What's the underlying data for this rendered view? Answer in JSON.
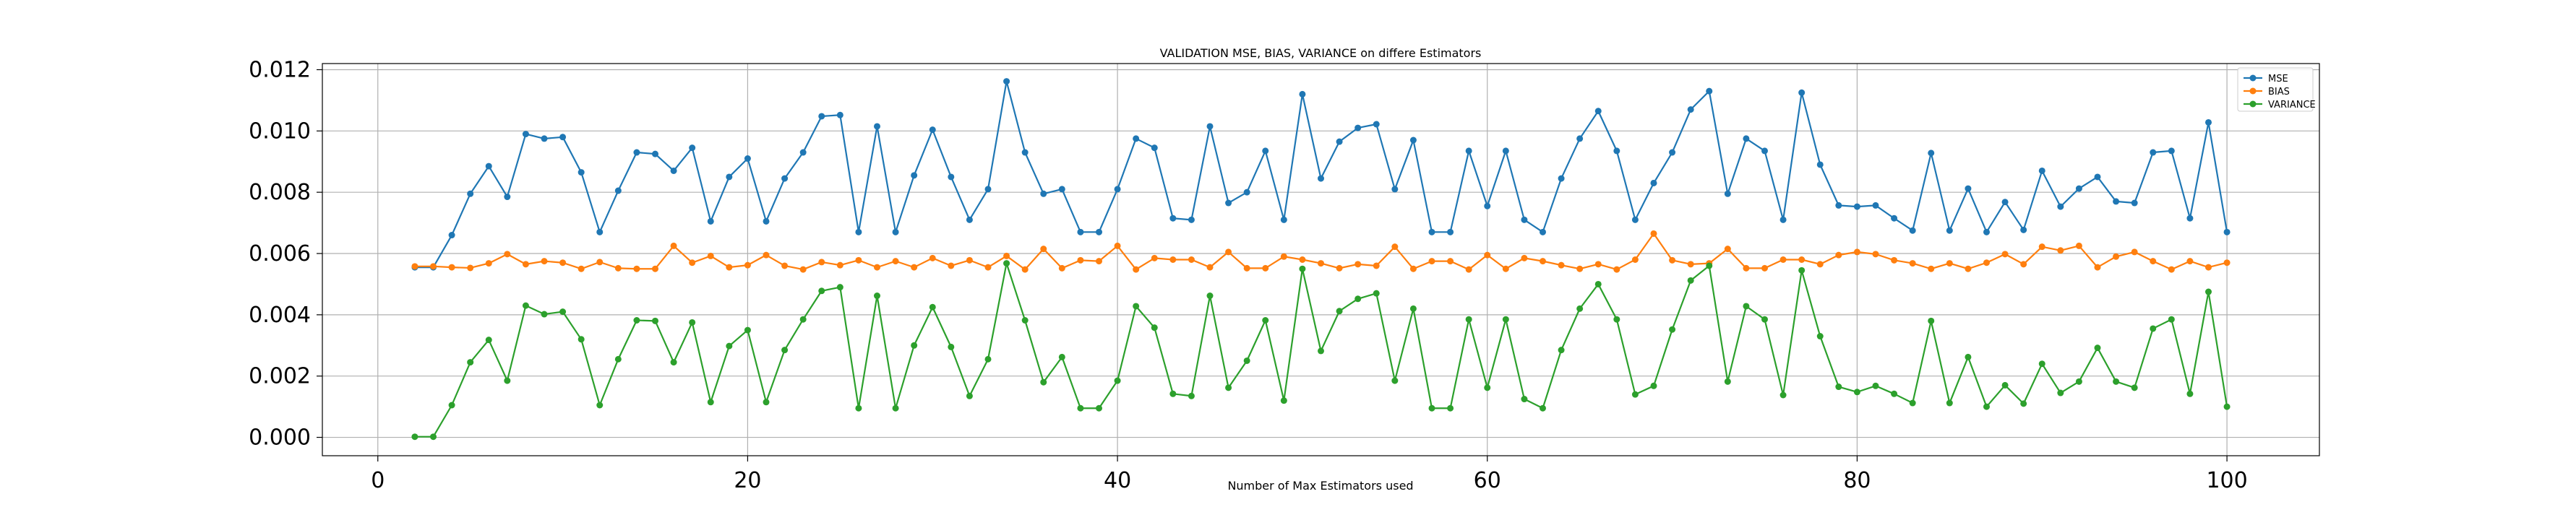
{
  "chart_data": {
    "type": "line",
    "title": "VALIDATION MSE, BIAS, VARIANCE on differe Estimators",
    "xlabel": "Number of Max Estimators used",
    "ylabel": "",
    "xlim": [
      -3,
      105
    ],
    "ylim": [
      -0.0006,
      0.0122
    ],
    "xticks": [
      0,
      20,
      40,
      60,
      80,
      100
    ],
    "yticks": [
      0.0,
      0.002,
      0.004,
      0.006,
      0.008,
      0.01,
      0.012
    ],
    "ytick_labels": [
      "0.000",
      "0.002",
      "0.004",
      "0.006",
      "0.008",
      "0.010",
      "0.012"
    ],
    "grid": true,
    "legend_position": "top-right",
    "x": [
      2,
      3,
      4,
      5,
      6,
      7,
      8,
      9,
      10,
      11,
      12,
      13,
      14,
      15,
      16,
      17,
      18,
      19,
      20,
      21,
      22,
      23,
      24,
      25,
      26,
      27,
      28,
      29,
      30,
      31,
      32,
      33,
      34,
      35,
      36,
      37,
      38,
      39,
      40,
      41,
      42,
      43,
      44,
      45,
      46,
      47,
      48,
      49,
      50,
      51,
      52,
      53,
      54,
      55,
      56,
      57,
      58,
      59,
      60,
      61,
      62,
      63,
      64,
      65,
      66,
      67,
      68,
      69,
      70,
      71,
      72,
      73,
      74,
      75,
      76,
      77,
      78,
      79,
      80,
      81,
      82,
      83,
      84,
      85,
      86,
      87,
      88,
      89,
      90,
      91,
      92,
      93,
      94,
      95,
      96,
      97,
      98,
      99,
      100
    ],
    "series": [
      {
        "name": "MSE",
        "color": "#1f77b4",
        "values": [
          0.00555,
          0.00555,
          0.0066,
          0.00795,
          0.00885,
          0.00785,
          0.0099,
          0.00975,
          0.0098,
          0.00865,
          0.0067,
          0.00805,
          0.0093,
          0.00925,
          0.0087,
          0.00945,
          0.00705,
          0.0085,
          0.0091,
          0.00705,
          0.00845,
          0.0093,
          0.01048,
          0.01052,
          0.0067,
          0.01015,
          0.0067,
          0.00855,
          0.01004,
          0.0085,
          0.0071,
          0.0081,
          0.01162,
          0.0093,
          0.00795,
          0.0081,
          0.0067,
          0.0067,
          0.0081,
          0.00975,
          0.00945,
          0.00715,
          0.0071,
          0.01015,
          0.00765,
          0.008,
          0.00935,
          0.0071,
          0.0112,
          0.00845,
          0.00965,
          0.0101,
          0.01022,
          0.0081,
          0.0097,
          0.0067,
          0.0067,
          0.00935,
          0.00755,
          0.00935,
          0.0071,
          0.0067,
          0.00845,
          0.00975,
          0.01065,
          0.00935,
          0.0071,
          0.0083,
          0.0093,
          0.0107,
          0.0113,
          0.00795,
          0.00975,
          0.00935,
          0.0071,
          0.01125,
          0.0089,
          0.00757,
          0.00753,
          0.00757,
          0.00715,
          0.00675,
          0.00928,
          0.00675,
          0.00812,
          0.0067,
          0.00768,
          0.00677,
          0.0087,
          0.00753,
          0.00812,
          0.0085,
          0.0077,
          0.00765,
          0.0093,
          0.00935,
          0.00715,
          0.01028,
          0.0067
        ]
      },
      {
        "name": "BIAS",
        "color": "#ff7f0e",
        "values": [
          0.00558,
          0.00558,
          0.00555,
          0.00553,
          0.00568,
          0.00598,
          0.00565,
          0.00575,
          0.0057,
          0.0055,
          0.00572,
          0.00552,
          0.0055,
          0.0055,
          0.00625,
          0.0057,
          0.00592,
          0.00555,
          0.00562,
          0.00595,
          0.0056,
          0.00548,
          0.00572,
          0.00562,
          0.00578,
          0.00555,
          0.00575,
          0.00555,
          0.00585,
          0.0056,
          0.00578,
          0.00555,
          0.00592,
          0.00548,
          0.00615,
          0.00552,
          0.00578,
          0.00575,
          0.00625,
          0.00548,
          0.00585,
          0.0058,
          0.0058,
          0.00555,
          0.00605,
          0.00552,
          0.00552,
          0.0059,
          0.0058,
          0.00568,
          0.00552,
          0.00565,
          0.0056,
          0.00622,
          0.0055,
          0.00575,
          0.00575,
          0.00548,
          0.00595,
          0.0055,
          0.00585,
          0.00575,
          0.00562,
          0.0055,
          0.00565,
          0.00548,
          0.0058,
          0.00665,
          0.00578,
          0.00565,
          0.00568,
          0.00615,
          0.00552,
          0.00552,
          0.0058,
          0.0058,
          0.00565,
          0.00595,
          0.00605,
          0.00598,
          0.00578,
          0.00568,
          0.0055,
          0.00568,
          0.0055,
          0.0057,
          0.00598,
          0.00565,
          0.00622,
          0.0061,
          0.00625,
          0.00555,
          0.0059,
          0.00605,
          0.00575,
          0.00548,
          0.00575,
          0.00555,
          0.0057
        ]
      },
      {
        "name": "VARIANCE",
        "color": "#2ca02c",
        "values": [
          2e-05,
          2e-05,
          0.00105,
          0.00245,
          0.00318,
          0.00185,
          0.0043,
          0.00402,
          0.0041,
          0.0032,
          0.00105,
          0.00255,
          0.00382,
          0.0038,
          0.00245,
          0.00375,
          0.00115,
          0.00298,
          0.0035,
          0.00115,
          0.00285,
          0.00385,
          0.00478,
          0.0049,
          0.00095,
          0.00462,
          0.00095,
          0.003,
          0.00425,
          0.00295,
          0.00135,
          0.00255,
          0.00568,
          0.00382,
          0.0018,
          0.00262,
          0.00095,
          0.00095,
          0.00185,
          0.00428,
          0.00358,
          0.00142,
          0.00135,
          0.00462,
          0.00162,
          0.0025,
          0.00382,
          0.0012,
          0.0055,
          0.00282,
          0.00412,
          0.00452,
          0.0047,
          0.00185,
          0.0042,
          0.00095,
          0.00095,
          0.00385,
          0.00162,
          0.00385,
          0.00125,
          0.00095,
          0.00285,
          0.0042,
          0.005,
          0.00385,
          0.0014,
          0.00168,
          0.00352,
          0.00512,
          0.0056,
          0.00182,
          0.00428,
          0.00385,
          0.00138,
          0.00545,
          0.0033,
          0.00165,
          0.00148,
          0.00168,
          0.00142,
          0.00112,
          0.0038,
          0.00112,
          0.00262,
          0.001,
          0.0017,
          0.0011,
          0.0024,
          0.00145,
          0.00182,
          0.00292,
          0.00182,
          0.00162,
          0.00355,
          0.00385,
          0.00142,
          0.00475,
          0.001
        ]
      }
    ]
  }
}
